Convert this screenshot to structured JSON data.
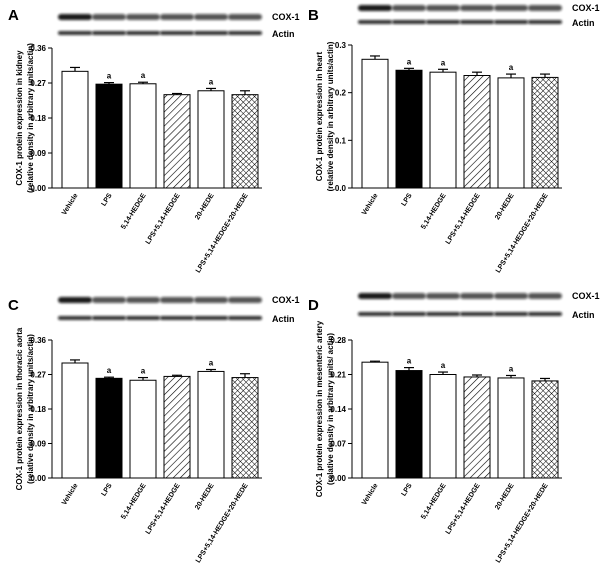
{
  "chart_data": [
    {
      "type": "bar",
      "panel": "A",
      "blot_labels": [
        "COX-1",
        "Actin"
      ],
      "ylabel": [
        "COX-1 protein expression in kidney",
        "(relative density in arbitrary units/actin)"
      ],
      "categories": [
        "Vehicle",
        "LPS",
        "5,14-HEDGE",
        "LPS+5,14-HEDGE",
        "20-HEDE",
        "LPS+5,14-HEDGE+20-HEDE"
      ],
      "values": [
        0.3,
        0.267,
        0.268,
        0.24,
        0.25,
        0.24
      ],
      "errors": [
        0.01,
        0.004,
        0.004,
        0.003,
        0.006,
        0.01
      ],
      "annotations": [
        null,
        "a",
        "a",
        null,
        "a",
        null
      ],
      "bar_fills": [
        "white",
        "black",
        "white",
        "hatch",
        "white",
        "crosshatch"
      ],
      "ylim": [
        0,
        0.36
      ],
      "yticks": [
        {
          "value": 0,
          "label": "0.00"
        },
        0.09,
        0.18,
        0.27,
        0.36
      ]
    },
    {
      "type": "bar",
      "panel": "B",
      "blot_labels": [
        "COX-1",
        "Actin"
      ],
      "ylabel": [
        "COX-1 protein expression in heart",
        "(relative density in arbitrary units/actin)"
      ],
      "categories": [
        "Vehicle",
        "LPS",
        "5,14-HEDGE",
        "LPS+5,14-HEDGE",
        "20-HEDE",
        "LPS+5,14-HEDGE+20-HEDE"
      ],
      "values": [
        0.27,
        0.247,
        0.243,
        0.236,
        0.231,
        0.232
      ],
      "errors": [
        0.007,
        0.004,
        0.006,
        0.007,
        0.008,
        0.007
      ],
      "annotations": [
        null,
        "a",
        "a",
        null,
        "a",
        null
      ],
      "bar_fills": [
        "white",
        "black",
        "white",
        "hatch",
        "white",
        "crosshatch"
      ],
      "ylim": [
        0,
        0.3
      ],
      "yticks": [
        {
          "value": 0,
          "label": "0.0"
        },
        0.1,
        0.2,
        0.3
      ]
    },
    {
      "type": "bar",
      "panel": "C",
      "blot_labels": [
        "COX-1",
        "Actin"
      ],
      "ylabel": [
        "COX-1 protein expression in thoracic aorta",
        "(relative density in arbitrary units/actin)"
      ],
      "categories": [
        "Vehicle",
        "LPS",
        "5,14-HEDGE",
        "LPS+5,14-HEDGE",
        "20-HEDE",
        "LPS+5,14-HEDGE+20-HEDE"
      ],
      "values": [
        0.3,
        0.26,
        0.255,
        0.265,
        0.278,
        0.262
      ],
      "errors": [
        0.008,
        0.003,
        0.007,
        0.003,
        0.005,
        0.01
      ],
      "annotations": [
        null,
        "a",
        "a",
        null,
        "a",
        null
      ],
      "bar_fills": [
        "white",
        "black",
        "white",
        "hatch",
        "white",
        "crosshatch"
      ],
      "ylim": [
        0,
        0.36
      ],
      "yticks": [
        {
          "value": 0,
          "label": "0.00"
        },
        0.09,
        0.18,
        0.27,
        0.36
      ]
    },
    {
      "type": "bar",
      "panel": "D",
      "blot_labels": [
        "COX-1",
        "Actin"
      ],
      "ylabel": [
        "COX-1 protein expression in mesenteric artery",
        "(relative density in arbitrary units/ actin)"
      ],
      "categories": [
        "Vehicle",
        "LPS",
        "5,14-HEDGE",
        "LPS+5,14-HEDGE",
        "20-HEDE",
        "LPS+5,14-HEDGE+20-HEDE"
      ],
      "values": [
        0.235,
        0.218,
        0.21,
        0.205,
        0.203,
        0.197
      ],
      "errors": [
        0.002,
        0.006,
        0.005,
        0.004,
        0.005,
        0.005
      ],
      "annotations": [
        null,
        "a",
        "a",
        null,
        "a",
        null
      ],
      "bar_fills": [
        "white",
        "black",
        "white",
        "hatch",
        "white",
        "crosshatch"
      ],
      "ylim": [
        0,
        0.28
      ],
      "yticks": [
        {
          "value": 0,
          "label": "0.00"
        },
        0.07,
        0.14,
        0.21,
        0.28
      ]
    }
  ]
}
